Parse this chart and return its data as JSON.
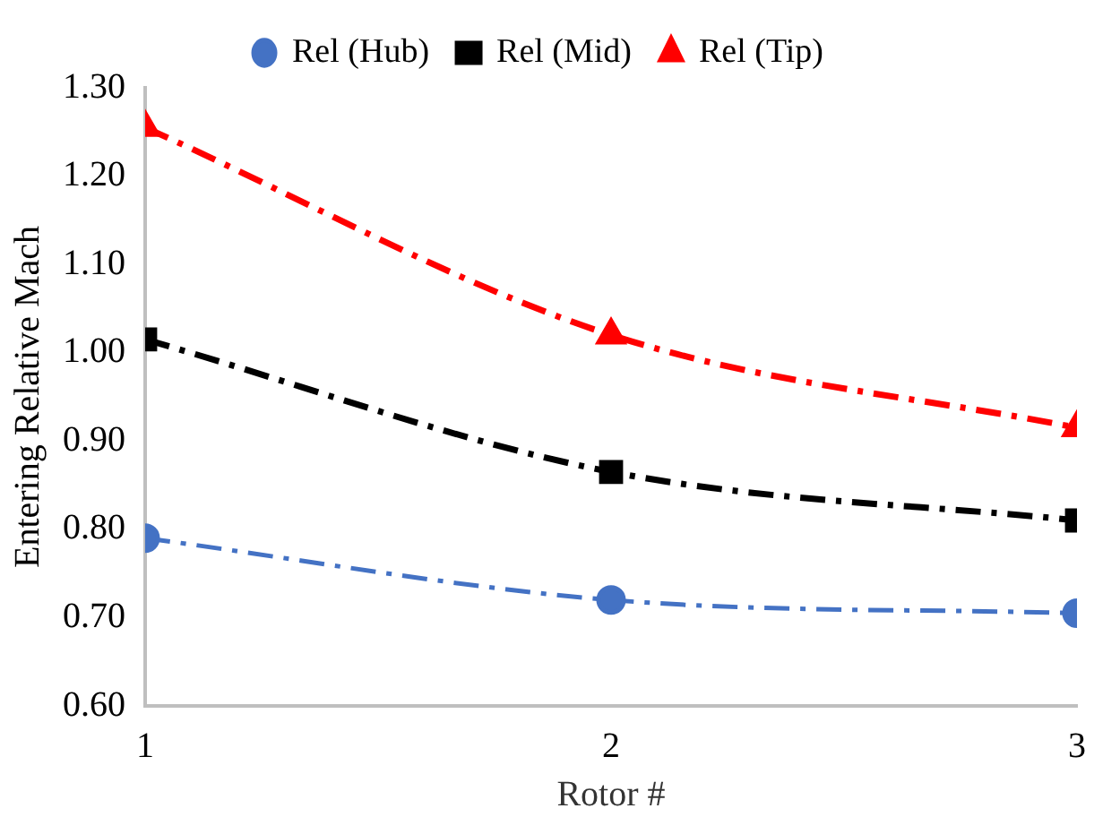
{
  "chart_data": {
    "type": "line",
    "xlabel": "Rotor #",
    "ylabel": "Entering Relative Mach",
    "x": [
      1,
      2,
      3
    ],
    "xlim": [
      1,
      3
    ],
    "xticks": [
      1,
      2,
      3
    ],
    "ylim": [
      0.6,
      1.3
    ],
    "yticks": [
      {
        "value": 0.6,
        "label": "0.60"
      },
      {
        "value": 0.7,
        "label": "0.70"
      },
      {
        "value": 0.8,
        "label": "0.80"
      },
      {
        "value": 0.9,
        "label": "0.90"
      },
      {
        "value": 1.0,
        "label": "1.00"
      },
      {
        "value": 1.1,
        "label": "1.10"
      },
      {
        "value": 1.2,
        "label": "1.20"
      },
      {
        "value": 1.3,
        "label": "1.30"
      }
    ],
    "series": [
      {
        "name": "Rel (Hub)",
        "color": "#4472c4",
        "values": [
          0.79,
          0.72,
          0.705
        ],
        "marker": "circle"
      },
      {
        "name": "Rel (Mid)",
        "color": "#000000",
        "values": [
          1.015,
          0.865,
          0.81
        ],
        "marker": "square"
      },
      {
        "name": "Rel (Tip)",
        "color": "#ff0000",
        "values": [
          1.255,
          1.02,
          0.915
        ],
        "marker": "triangle"
      }
    ],
    "grid": false,
    "legend": "top",
    "line_style": "dashed"
  }
}
